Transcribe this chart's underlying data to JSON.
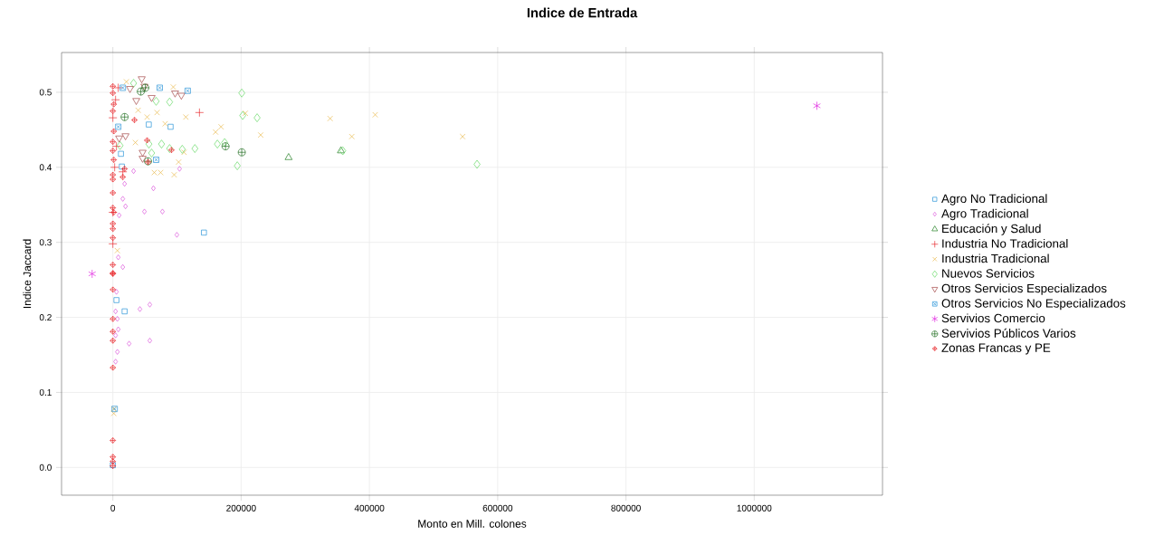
{
  "chart_data": {
    "type": "scatter",
    "title": "Indice de Entrada",
    "xlabel": "Monto en Mill. colones",
    "ylabel": "Indice Jaccard",
    "xlim": [
      -80000,
      1200000
    ],
    "ylim": [
      -0.037,
      0.553
    ],
    "xticks": [
      0,
      200000,
      400000,
      600000,
      800000,
      1000000
    ],
    "yticks": [
      {
        "value": 0,
        "label": "0.0"
      },
      0.1,
      0.2,
      0.3,
      0.4,
      0.5
    ],
    "grid": true,
    "legend": "right",
    "series": [
      {
        "name": "Agro No Tradicional",
        "color": "#1f8fd6",
        "marker": "square",
        "x": [
          56000,
          90000,
          12600,
          14000,
          142000,
          5600,
          18300,
          0
        ],
        "values": [
          0.457,
          0.454,
          0.418,
          0.401,
          0.313,
          0.223,
          0.208,
          0.003
        ]
      },
      {
        "name": "Agro Tradicional",
        "color": "#d94fd9",
        "marker": "diamond",
        "x": [
          32300,
          18300,
          63200,
          15500,
          19700,
          49200,
          77300,
          99800,
          8400,
          15500,
          9800,
          104000,
          5600,
          4200,
          7000,
          8400,
          4200,
          25300,
          57600,
          42200,
          57600,
          7000,
          4200
        ],
        "values": [
          0.395,
          0.378,
          0.372,
          0.358,
          0.348,
          0.341,
          0.341,
          0.31,
          0.28,
          0.267,
          0.336,
          0.398,
          0.234,
          0.208,
          0.198,
          0.184,
          0.176,
          0.165,
          0.169,
          0.211,
          0.217,
          0.154,
          0.141
        ]
      },
      {
        "name": "Educación y Salud",
        "color": "#1a7a1a",
        "marker": "triangle",
        "x": [
          274000,
          355600
        ],
        "values": [
          0.413,
          0.422
        ]
      },
      {
        "name": "Industria No Tradicional",
        "color": "#e8252a",
        "x": [
          135000,
          8400,
          4200,
          5600,
          15500,
          0,
          2800,
          0,
          0
        ],
        "values": [
          0.473,
          0.506,
          0.49,
          0.428,
          0.394,
          0.466,
          0.4,
          0.298,
          0.34
        ]
      },
      {
        "name": "Industria Tradicional",
        "color": "#e8b84a",
        "marker": "cross",
        "x": [
          94200,
          113800,
          81500,
          160200,
          168700,
          206600,
          230500,
          338700,
          409000,
          372500,
          545300,
          111000,
          102600,
          95600,
          21100,
          68900,
          35100,
          64600,
          74500,
          7000,
          39400,
          53400,
          1400,
          1400
        ],
        "values": [
          0.507,
          0.467,
          0.458,
          0.447,
          0.454,
          0.472,
          0.443,
          0.465,
          0.47,
          0.441,
          0.441,
          0.42,
          0.407,
          0.39,
          0.514,
          0.473,
          0.433,
          0.393,
          0.393,
          0.289,
          0.476,
          0.467,
          0.078,
          0.072
        ]
      },
      {
        "name": "Nuevos Servicios",
        "color": "#5fd85f",
        "marker": "diamond",
        "x": [
          201000,
          202400,
          224900,
          163000,
          174300,
          194000,
          127900,
          108200,
          88500,
          358400,
          567800,
          67500,
          32300,
          75900,
          60400,
          88500,
          56200,
          11200
        ],
        "values": [
          0.499,
          0.469,
          0.466,
          0.431,
          0.433,
          0.402,
          0.425,
          0.424,
          0.487,
          0.422,
          0.404,
          0.488,
          0.512,
          0.431,
          0.419,
          0.425,
          0.431,
          0.429
        ]
      },
      {
        "name": "Otros Servicios Especializados",
        "color": "#a04040",
        "x": [
          45000,
          26700,
          49200,
          60400,
          97000,
          106800,
          46400,
          46400,
          19700,
          9800,
          36500
        ],
        "values": [
          0.518,
          0.505,
          0.508,
          0.493,
          0.499,
          0.496,
          0.42,
          0.412,
          0.442,
          0.439,
          0.489
        ]
      },
      {
        "name": "Otros Servicios No Especializados",
        "color": "#1f8fd6",
        "x": [
          15500,
          73100,
          116700,
          67500,
          8400,
          2800
        ],
        "values": [
          0.506,
          0.506,
          0.502,
          0.41,
          0.454,
          0.078
        ]
      },
      {
        "name": "Servivios Comercio",
        "color": "#e020e0",
        "x": [
          -32300,
          1097700
        ],
        "values": [
          0.258,
          0.482
        ]
      },
      {
        "name": "Servivios Públicos Varios",
        "color": "#1a6a1a",
        "x": [
          43600,
          50600,
          54800,
          18300,
          175700,
          201000
        ],
        "values": [
          0.501,
          0.506,
          0.408,
          0.467,
          0.428,
          0.42
        ]
      },
      {
        "name": "Zonas Francas y PE",
        "color": "#e8252a",
        "x": [
          0,
          0,
          1400,
          0,
          1400,
          0,
          0,
          1400,
          0,
          0,
          0,
          0,
          1400,
          0,
          0,
          0,
          0,
          0,
          0,
          0,
          0,
          0,
          0,
          0,
          0,
          0,
          0,
          0,
          33700,
          91400,
          53400,
          18300,
          15500,
          54800
        ],
        "values": [
          0.508,
          0.499,
          0.484,
          0.475,
          0.448,
          0.434,
          0.422,
          0.41,
          0.39,
          0.384,
          0.366,
          0.346,
          0.34,
          0.325,
          0.318,
          0.306,
          0.27,
          0.259,
          0.258,
          0.237,
          0.198,
          0.181,
          0.169,
          0.133,
          0.036,
          0.014,
          0.008,
          0.002,
          0.463,
          0.423,
          0.436,
          0.398,
          0.387,
          0.407
        ]
      }
    ]
  }
}
